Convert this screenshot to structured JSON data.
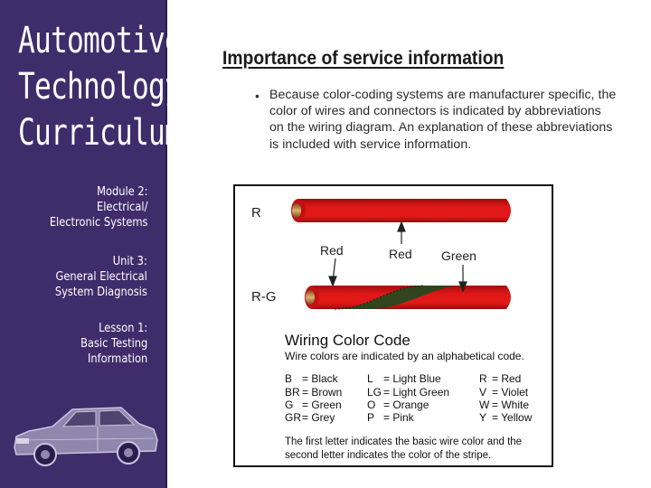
{
  "sidebar": {
    "brand_lines": [
      "Automotive",
      "Technology",
      "Curriculum"
    ],
    "module": [
      "Module 2:",
      "Electrical/",
      "Electronic Systems"
    ],
    "unit": [
      "Unit 3:",
      "General Electrical",
      "System Diagnosis"
    ],
    "lesson": [
      "Lesson 1:",
      "Basic Testing",
      "Information"
    ],
    "car_icon": "sedan-car-icon"
  },
  "slide": {
    "title": "Importance of service information",
    "bullet_symbol": "•",
    "bullet_text": "Because color-coding systems are manufacturer specific, the color of wires and connectors is indicated by abbreviations on the wiring diagram. An explanation of these abbreviations is included with service information."
  },
  "figure": {
    "wire1_label": "R",
    "wire2_label": "R-G",
    "callouts": [
      "Red",
      "Red",
      "Green"
    ],
    "code_title": "Wiring Color Code",
    "code_subtitle": "Wire colors are indicated by an alphabetical code.",
    "codes": [
      [
        "B",
        "= Black",
        "L",
        "= Light Blue",
        "R",
        "= Red"
      ],
      [
        "BR",
        "= Brown",
        "LG",
        "= Light Green",
        "V",
        "= Violet"
      ],
      [
        "G",
        "= Green",
        "O",
        "= Orange",
        "W",
        "= White"
      ],
      [
        "GR",
        "= Grey",
        "P",
        "= Pink",
        "Y",
        "= Yellow"
      ]
    ],
    "footnote_lines": [
      "The first letter indicates the basic wire color and the",
      "second letter indicates the color of the stripe."
    ],
    "colors": {
      "wire_red": "#e01818",
      "wire_dark": "#a00c0c",
      "stripe_green": "#1f4a1f"
    }
  }
}
